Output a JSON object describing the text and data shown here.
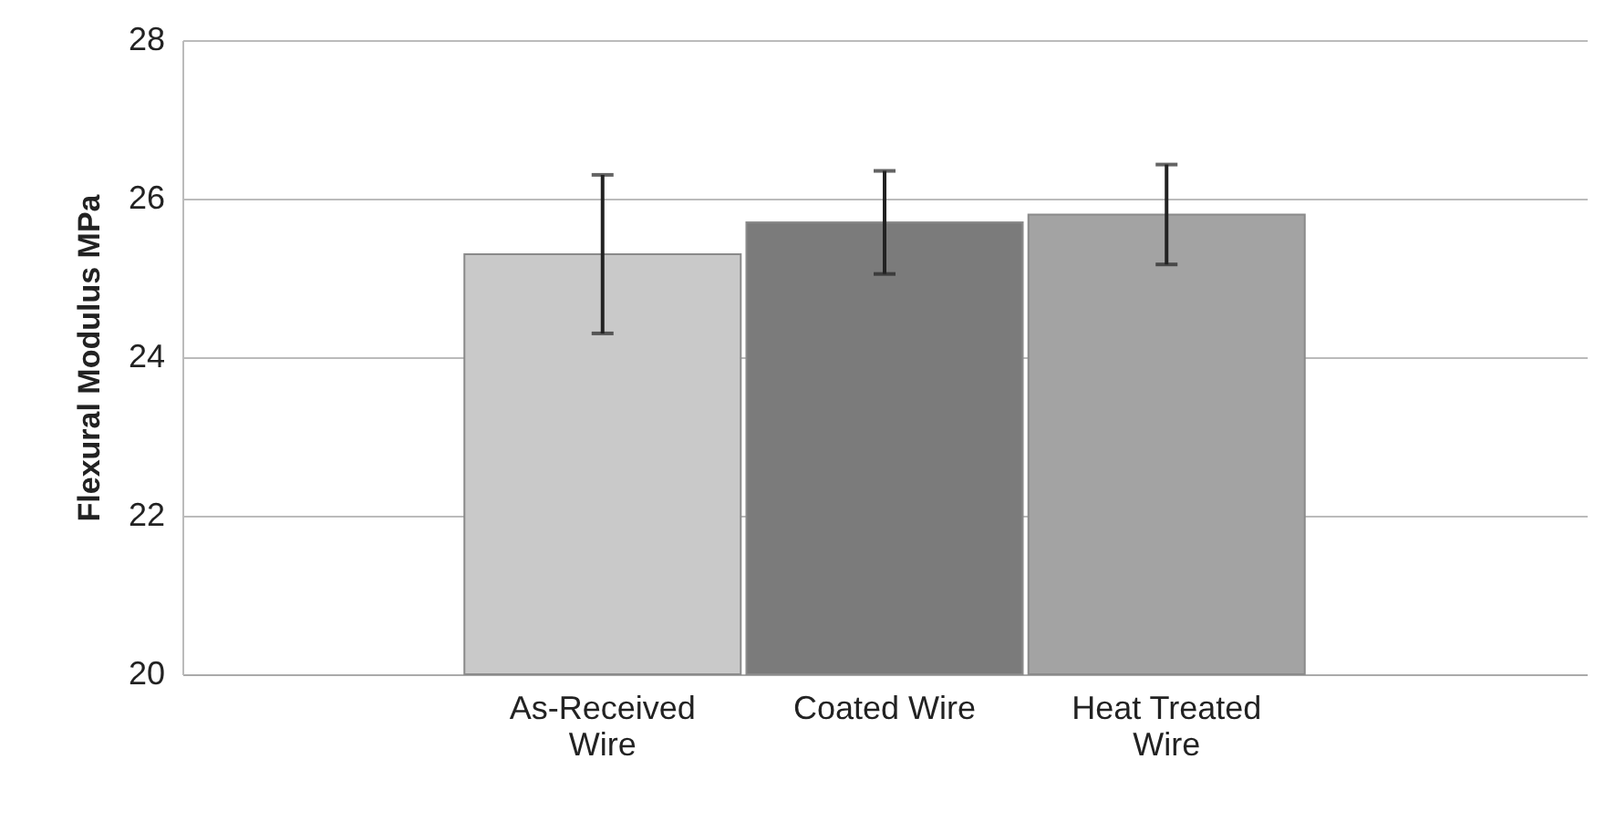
{
  "chart_data": {
    "type": "bar",
    "ylabel": "Flexural Modulus MPa",
    "categories": [
      "As-Received Wire",
      "Coated Wire",
      "Heat Treated Wire"
    ],
    "values": [
      25.3,
      25.7,
      25.8
    ],
    "errors": [
      1.0,
      0.65,
      0.63
    ],
    "colors": [
      "#c9c9c9",
      "#7b7b7b",
      "#a3a3a3"
    ],
    "ylim": [
      20,
      28
    ],
    "yticks": [
      20,
      22,
      24,
      26,
      28
    ],
    "grid": "y"
  }
}
